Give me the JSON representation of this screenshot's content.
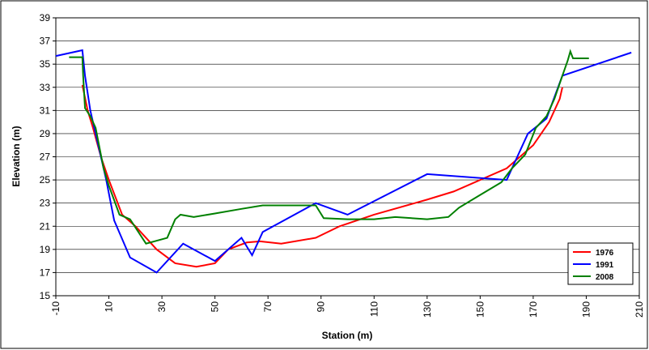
{
  "chart_data": {
    "type": "line",
    "x_label": "Station (m)",
    "y_label": "Elevation (m)",
    "xlim": [
      -10,
      210
    ],
    "xticks": [
      -10,
      10,
      30,
      50,
      70,
      90,
      110,
      130,
      150,
      170,
      190,
      210
    ],
    "ylim": [
      15,
      39
    ],
    "yticks": [
      15,
      17,
      19,
      21,
      23,
      25,
      27,
      29,
      31,
      33,
      35,
      37,
      39
    ],
    "grid": true,
    "legend_position": "bottom-right",
    "series": [
      {
        "name": "1976",
        "color": "#ff0000",
        "x": [
          0,
          2,
          4,
          7,
          10,
          15,
          20,
          28,
          35,
          43,
          50,
          55,
          62,
          67,
          75,
          88,
          97,
          110,
          130,
          140,
          160,
          170,
          176,
          180,
          181
        ],
        "values": [
          33.2,
          31,
          29.5,
          27,
          25,
          22,
          21,
          19,
          17.8,
          17.5,
          17.8,
          19,
          19.6,
          19.7,
          19.5,
          20,
          21,
          22,
          23.3,
          24,
          26,
          28,
          30,
          32,
          33
        ]
      },
      {
        "name": "1991",
        "color": "#0000ff",
        "x": [
          -10,
          0,
          1,
          3,
          5,
          9,
          12,
          18,
          28,
          38,
          50,
          60,
          64,
          68,
          88,
          100,
          130,
          160,
          168,
          175,
          181,
          207
        ],
        "values": [
          35.7,
          36.2,
          34,
          31,
          29,
          25,
          21.5,
          18.3,
          17,
          19.5,
          18,
          20,
          18.5,
          20.5,
          23,
          22,
          25.5,
          25,
          29,
          30.3,
          34,
          36
        ]
      },
      {
        "name": "2008",
        "color": "#008000",
        "x": [
          -5,
          0,
          0.3,
          1,
          3,
          5,
          8,
          10,
          14,
          18,
          24,
          32,
          35,
          37,
          42,
          50,
          60,
          68,
          78,
          88,
          91,
          100,
          110,
          118,
          130,
          138,
          142,
          150,
          158,
          162,
          167,
          171,
          175,
          178,
          181,
          183,
          184,
          185,
          191
        ],
        "values": [
          35.6,
          35.6,
          34,
          31.2,
          30.5,
          29.5,
          26,
          24.5,
          22,
          21.6,
          19.5,
          20,
          21.6,
          22,
          21.8,
          22.1,
          22.5,
          22.8,
          22.8,
          22.8,
          21.7,
          21.6,
          21.6,
          21.8,
          21.6,
          21.8,
          22.6,
          23.7,
          24.8,
          26,
          27.2,
          29.5,
          30.5,
          32,
          34,
          35.3,
          36.1,
          35.5,
          35.5
        ]
      }
    ]
  }
}
